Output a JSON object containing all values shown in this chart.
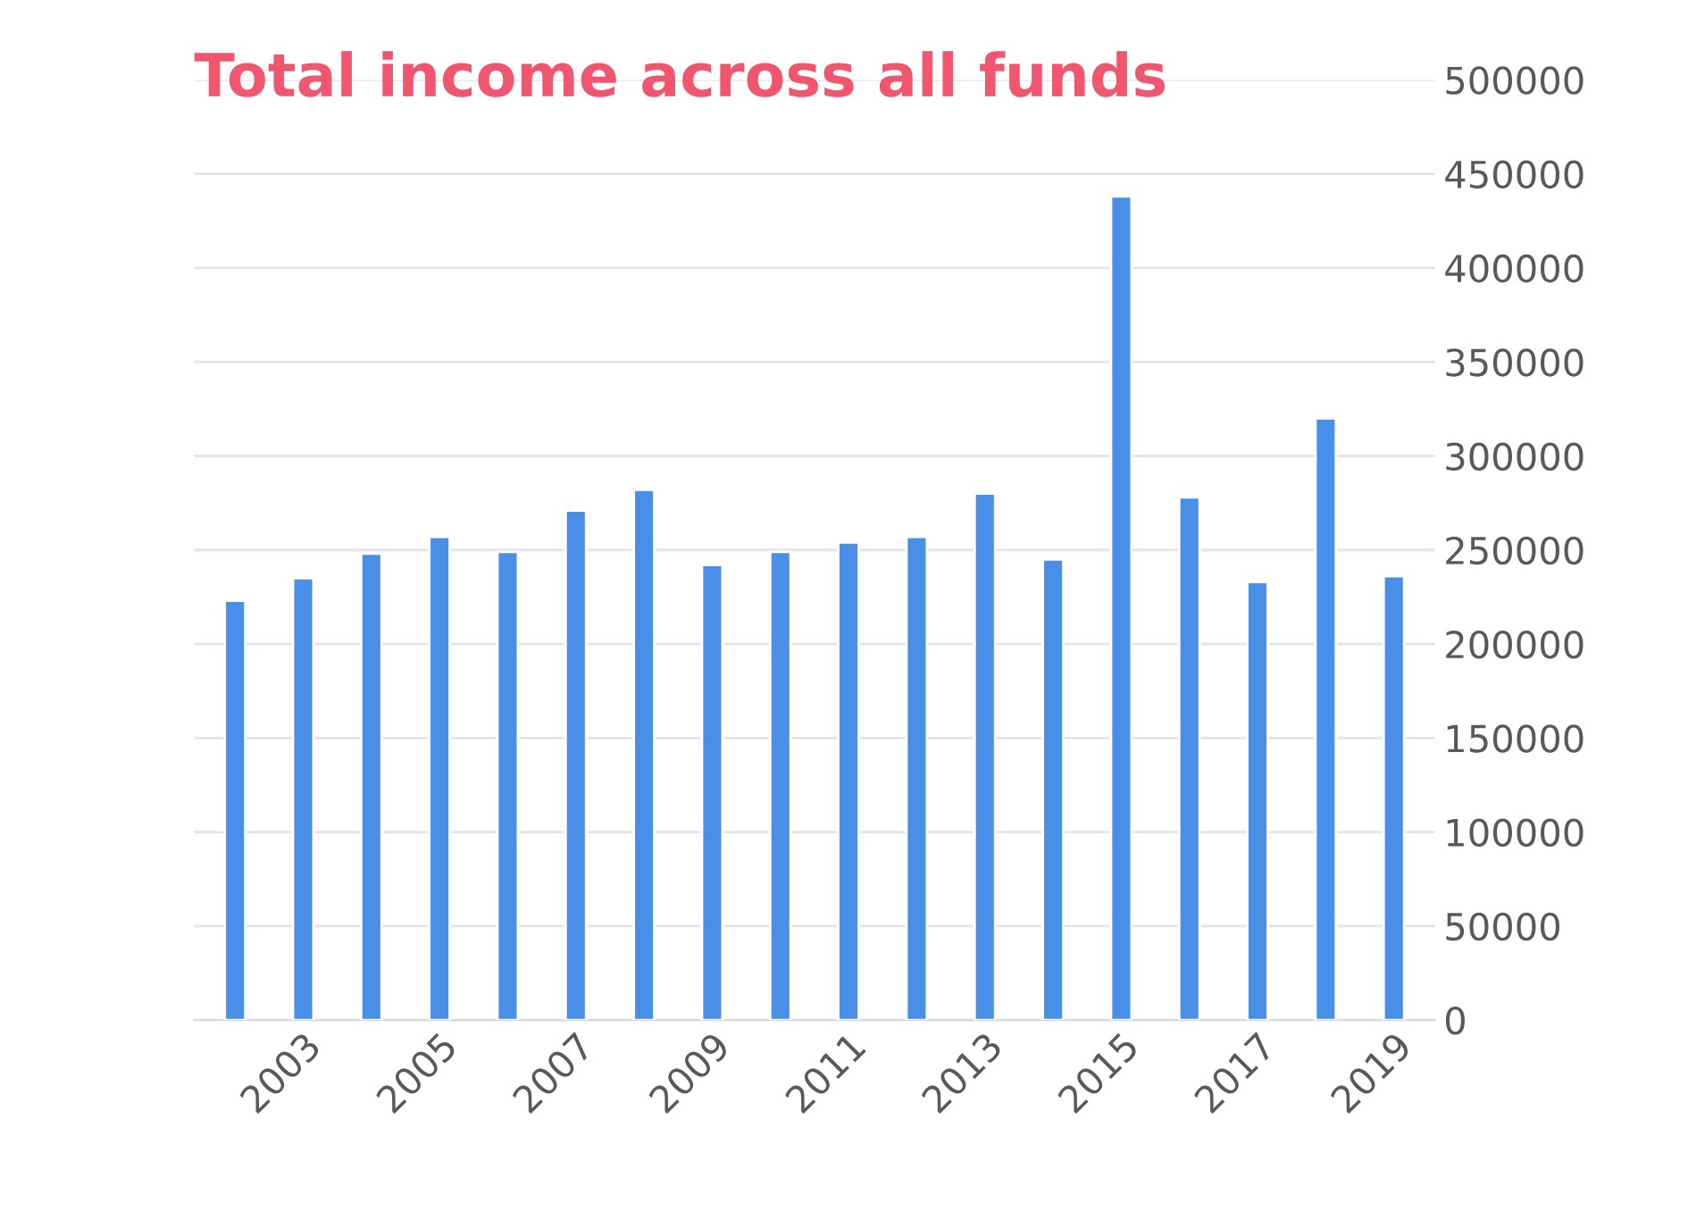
{
  "chart_data": {
    "type": "bar",
    "title": "Total income across all funds",
    "categories": [
      null,
      "2003",
      null,
      "2005",
      null,
      "2007",
      null,
      "2009",
      null,
      "2011",
      null,
      "2013",
      null,
      "2015",
      null,
      "2017",
      null,
      "2019"
    ],
    "values": [
      223000,
      235000,
      248000,
      257000,
      249000,
      271000,
      282000,
      242000,
      249000,
      254000,
      257000,
      280000,
      245000,
      438000,
      278000,
      233000,
      320000,
      236000
    ],
    "color": "#4a8fe7",
    "ylim": [
      0,
      500000
    ],
    "yticks": [
      0,
      50000,
      100000,
      150000,
      200000,
      250000,
      300000,
      350000,
      400000,
      450000,
      500000
    ],
    "grid": "y"
  }
}
